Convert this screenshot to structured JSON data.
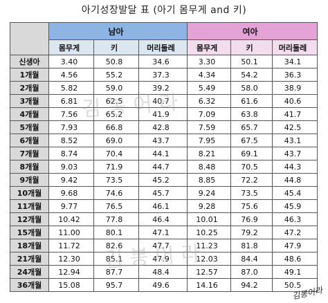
{
  "title": "아기성장발달 표 (아기 몸무게 and 키)",
  "groups": {
    "boy": "남아",
    "girl": "여아"
  },
  "columns": [
    "몸무게",
    "키",
    "머리둘레",
    "몸무게",
    "키",
    "머리둘레"
  ],
  "rows": [
    {
      "age": "신생아",
      "values": [
        "3.40",
        "50.8",
        "34.6",
        "3.30",
        "50.1",
        "34.1"
      ]
    },
    {
      "age": "1개월",
      "values": [
        "4.56",
        "55.2",
        "37.3",
        "4.34",
        "54.2",
        "36.3"
      ]
    },
    {
      "age": "2개월",
      "values": [
        "5.82",
        "59.0",
        "39.2",
        "5.49",
        "58.0",
        "38.9"
      ]
    },
    {
      "age": "3개월",
      "values": [
        "6.81",
        "62.5",
        "40.7",
        "6.32",
        "61.6",
        "40.6"
      ]
    },
    {
      "age": "4개월",
      "values": [
        "7.56",
        "65.2",
        "41.9",
        "7.09",
        "63.8",
        "41.7"
      ]
    },
    {
      "age": "5개월",
      "values": [
        "7.93",
        "66.8",
        "42.8",
        "7.59",
        "65.7",
        "42.5"
      ]
    },
    {
      "age": "6개월",
      "values": [
        "8.52",
        "69.0",
        "43.7",
        "7.95",
        "67.5",
        "43.1"
      ]
    },
    {
      "age": "7개월",
      "values": [
        "8.74",
        "70.4",
        "44.1",
        "8.21",
        "69.1",
        "43.7"
      ]
    },
    {
      "age": "8개월",
      "values": [
        "9.03",
        "71.9",
        "44.7",
        "8.48",
        "70.5",
        "44.3"
      ]
    },
    {
      "age": "9개월",
      "values": [
        "9.42",
        "73.5",
        "45.2",
        "8.85",
        "72.2",
        "44.8"
      ]
    },
    {
      "age": "10개월",
      "values": [
        "9.68",
        "74.6",
        "45.7",
        "9.24",
        "73.5",
        "45.4"
      ]
    },
    {
      "age": "11개월",
      "values": [
        "9.77",
        "76.5",
        "46.1",
        "9.28",
        "75.6",
        "45.9"
      ]
    },
    {
      "age": "12개월",
      "values": [
        "10.42",
        "77.8",
        "46.4",
        "10.01",
        "76.9",
        "46.3"
      ]
    },
    {
      "age": "15개월",
      "values": [
        "11.00",
        "80.1",
        "47.1",
        "10.25",
        "79.2",
        "47.2"
      ]
    },
    {
      "age": "18개월",
      "values": [
        "11.72",
        "82.6",
        "47.7",
        "11.23",
        "81.8",
        "47.9"
      ]
    },
    {
      "age": "21개월",
      "values": [
        "12.30",
        "85.1",
        "47.9",
        "12.03",
        "84.4",
        "48.6"
      ]
    },
    {
      "age": "24개월",
      "values": [
        "12.94",
        "87.7",
        "48.4",
        "12.57",
        "87.0",
        "49.1"
      ]
    },
    {
      "age": "36개월",
      "values": [
        "15.08",
        "95.7",
        "49.6",
        "14.16",
        "94.2",
        "50.5"
      ]
    }
  ],
  "signature": "김봉어라"
}
